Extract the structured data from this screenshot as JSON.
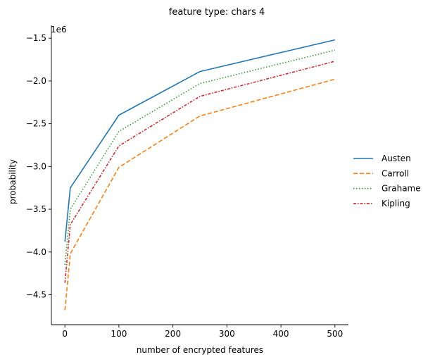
{
  "chart_data": {
    "type": "line",
    "title": "feature type: chars 4",
    "xlabel": "number of encrypted features",
    "ylabel": "probability",
    "offset_label": "1e6",
    "x": [
      0,
      10,
      100,
      250,
      500
    ],
    "xlim": [
      -25,
      525
    ],
    "ylim": [
      -4.85,
      -1.35
    ],
    "xticks": [
      0,
      100,
      200,
      300,
      400,
      500
    ],
    "xtick_labels": [
      "0",
      "100",
      "200",
      "300",
      "400",
      "500"
    ],
    "yticks": [
      -4.5,
      -4.0,
      -3.5,
      -3.0,
      -2.5,
      -2.0,
      -1.5
    ],
    "ytick_labels": [
      "−4.5",
      "−4.0",
      "−3.5",
      "−3.0",
      "−2.5",
      "−2.0",
      "−1.5"
    ],
    "grid": false,
    "legend_position": "right",
    "series": [
      {
        "name": "Austen",
        "values": [
          -3.88,
          -3.25,
          -2.4,
          -1.89,
          -1.52
        ],
        "color": "#1f77b4",
        "dash": "solid"
      },
      {
        "name": "Carroll",
        "values": [
          -4.68,
          -4.02,
          -3.01,
          -2.41,
          -1.98
        ],
        "color": "#ff7f0e",
        "dash": "dashed"
      },
      {
        "name": "Grahame",
        "values": [
          -4.15,
          -3.5,
          -2.59,
          -2.03,
          -1.64
        ],
        "color": "#2ca02c",
        "dash": "dotted"
      },
      {
        "name": "Kipling",
        "values": [
          -4.36,
          -3.68,
          -2.76,
          -2.18,
          -1.77
        ],
        "color": "#d62728",
        "dash": "dashdot"
      }
    ]
  }
}
